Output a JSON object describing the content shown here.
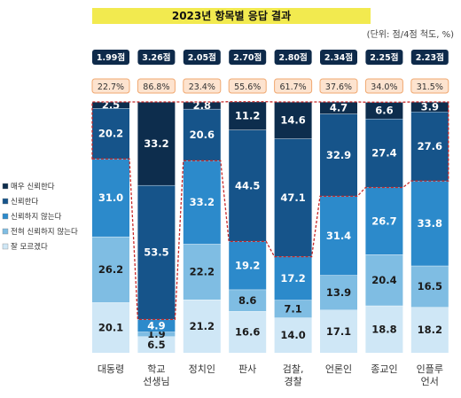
{
  "chart_data": {
    "type": "bar",
    "stacked": true,
    "title": "2023년 항목별 응답 결과",
    "unit_note": "(단위: 점/4점 척도, %)",
    "categories": [
      "대동령",
      "학교\n선생님",
      "정치인",
      "판사",
      "검찰,\n경찰",
      "언론인",
      "종교인",
      "인플루\n언서"
    ],
    "scores": [
      "1.99점",
      "3.26점",
      "2.05점",
      "2.70점",
      "2.80점",
      "2.34점",
      "2.25점",
      "2.23점"
    ],
    "trust_percent": [
      "22.7%",
      "86.8%",
      "23.4%",
      "55.6%",
      "61.7%",
      "37.6%",
      "34.0%",
      "31.5%"
    ],
    "series": [
      {
        "name": "잘 모르겠다",
        "values": [
          20.1,
          6.5,
          21.2,
          16.6,
          14.0,
          17.1,
          18.8,
          18.2
        ]
      },
      {
        "name": "전혀 신뢰하지 않는다",
        "values": [
          26.2,
          1.9,
          22.2,
          8.6,
          7.1,
          13.9,
          20.4,
          16.5
        ]
      },
      {
        "name": "신뢰하지 않는다",
        "values": [
          31.0,
          4.9,
          33.2,
          19.2,
          17.2,
          31.4,
          26.7,
          33.8
        ]
      },
      {
        "name": "신뢰한다",
        "values": [
          20.2,
          53.5,
          20.6,
          44.5,
          47.1,
          32.9,
          27.4,
          27.6
        ]
      },
      {
        "name": "매우 신뢰한다",
        "values": [
          2.5,
          33.2,
          2.8,
          11.2,
          14.6,
          4.7,
          6.6,
          3.9
        ]
      }
    ],
    "ylim": [
      0,
      100
    ],
    "legend_position": "left",
    "colors": {
      "잘 모르겠다": "#cfe7f6",
      "전혀 신뢰하지 않는다": "#7fbde3",
      "신뢰하지 않는다": "#2c8acb",
      "신뢰한다": "#16548a",
      "매우 신뢰한다": "#0d2d4d",
      "score_box": "#0e2a4a",
      "pct_box_fill": "#fde3cf",
      "pct_box_border": "#f0a870",
      "trust_line": "#c62828"
    },
    "text_colors": {
      "잘 모르겠다": "#1a1a1a",
      "전혀 신뢰하지 않는다": "#1a1a1a",
      "신뢰하지 않는다": "#ffffff",
      "신뢰한다": "#ffffff",
      "매우 신뢰한다": "#ffffff"
    }
  }
}
